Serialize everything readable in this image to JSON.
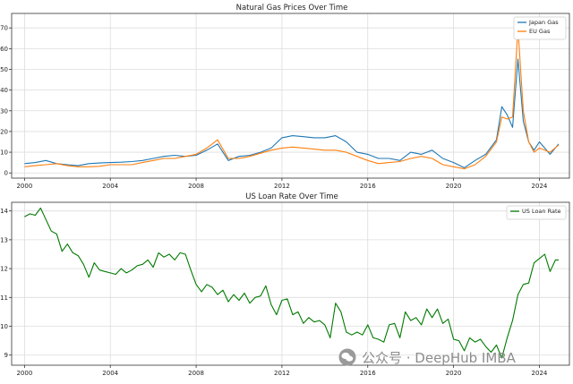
{
  "chart_data": [
    {
      "type": "line",
      "title": "Natural Gas Prices Over Time",
      "xlim": [
        1999.4,
        2025.4
      ],
      "ylim": [
        -2.5,
        77
      ],
      "xticks": [
        2000,
        2004,
        2008,
        2012,
        2016,
        2020,
        2024
      ],
      "yticks": [
        0,
        10,
        20,
        30,
        40,
        50,
        60,
        70
      ],
      "grid": true,
      "legend_position": "top-right",
      "series": [
        {
          "name": "Japan Gas",
          "color": "#1f77b4",
          "x": [
            2000,
            2000.5,
            2001,
            2001.5,
            2002,
            2002.5,
            2003,
            2003.5,
            2004,
            2004.5,
            2005,
            2005.5,
            2006,
            2006.5,
            2007,
            2007.5,
            2008,
            2008.5,
            2009,
            2009.5,
            2010,
            2010.5,
            2011,
            2011.5,
            2012,
            2012.5,
            2013,
            2013.5,
            2014,
            2014.5,
            2015,
            2015.5,
            2016,
            2016.5,
            2017,
            2017.5,
            2018,
            2018.5,
            2019,
            2019.5,
            2020,
            2020.5,
            2021,
            2021.5,
            2022,
            2022.25,
            2022.5,
            2022.75,
            2023,
            2023.25,
            2023.5,
            2023.75,
            2024,
            2024.5,
            2024.9
          ],
          "y": [
            4.5,
            5,
            6,
            4.5,
            4,
            3.5,
            4.5,
            4.8,
            5,
            5.2,
            5.5,
            6,
            7,
            8,
            8.5,
            8,
            8.5,
            11,
            14,
            6,
            8,
            8.5,
            10,
            12,
            17,
            18,
            17.5,
            17,
            17,
            18,
            15,
            10,
            9,
            7,
            7,
            6,
            10,
            9,
            11,
            7,
            5,
            2.5,
            6,
            9,
            16,
            32,
            28,
            22,
            55,
            25,
            15,
            11,
            15,
            9,
            14
          ]
        },
        {
          "name": "EU Gas",
          "color": "#ff7f0e",
          "x": [
            2000,
            2000.5,
            2001,
            2001.5,
            2002,
            2002.5,
            2003,
            2003.5,
            2004,
            2004.5,
            2005,
            2005.5,
            2006,
            2006.5,
            2007,
            2007.5,
            2008,
            2008.5,
            2009,
            2009.5,
            2010,
            2010.5,
            2011,
            2011.5,
            2012,
            2012.5,
            2013,
            2013.5,
            2014,
            2014.5,
            2015,
            2015.5,
            2016,
            2016.5,
            2017,
            2017.5,
            2018,
            2018.5,
            2019,
            2019.5,
            2020,
            2020.5,
            2021,
            2021.5,
            2022,
            2022.25,
            2022.5,
            2022.75,
            2023,
            2023.25,
            2023.5,
            2023.75,
            2024,
            2024.5,
            2024.9
          ],
          "y": [
            3,
            3.5,
            4,
            4.5,
            3.5,
            3,
            3,
            3.2,
            4,
            4,
            4,
            5,
            6,
            7,
            7,
            8,
            9,
            12,
            16,
            7,
            7,
            8,
            9.5,
            11,
            12,
            12.5,
            12,
            11.5,
            11,
            11,
            10,
            8,
            6,
            4.5,
            5,
            5.5,
            7,
            8,
            7,
            4,
            3,
            2,
            4,
            8,
            15,
            27,
            26,
            27,
            70,
            30,
            15,
            10,
            12,
            10,
            13.5
          ]
        }
      ]
    },
    {
      "type": "line",
      "title": "US Loan Rate Over Time",
      "xlim": [
        1999.4,
        2025.4
      ],
      "ylim": [
        8.65,
        14.3
      ],
      "xticks": [
        2000,
        2004,
        2008,
        2012,
        2016,
        2020,
        2024
      ],
      "yticks": [
        9,
        10,
        11,
        12,
        13,
        14
      ],
      "grid": true,
      "legend_position": "top-right",
      "series": [
        {
          "name": "US Loan Rate",
          "color": "#007a00",
          "x": [
            2000,
            2000.25,
            2000.5,
            2000.75,
            2001,
            2001.25,
            2001.5,
            2001.75,
            2002,
            2002.25,
            2002.5,
            2002.75,
            2003,
            2003.25,
            2003.5,
            2003.75,
            2004,
            2004.25,
            2004.5,
            2004.75,
            2005,
            2005.25,
            2005.5,
            2005.75,
            2006,
            2006.25,
            2006.5,
            2006.75,
            2007,
            2007.25,
            2007.5,
            2007.75,
            2008,
            2008.25,
            2008.5,
            2008.75,
            2009,
            2009.25,
            2009.5,
            2009.75,
            2010,
            2010.25,
            2010.5,
            2010.75,
            2011,
            2011.25,
            2011.5,
            2011.75,
            2012,
            2012.25,
            2012.5,
            2012.75,
            2013,
            2013.25,
            2013.5,
            2013.75,
            2014,
            2014.25,
            2014.5,
            2014.75,
            2015,
            2015.25,
            2015.5,
            2015.75,
            2016,
            2016.25,
            2016.5,
            2016.75,
            2017,
            2017.25,
            2017.5,
            2017.75,
            2018,
            2018.25,
            2018.5,
            2018.75,
            2019,
            2019.25,
            2019.5,
            2019.75,
            2020,
            2020.25,
            2020.5,
            2020.75,
            2021,
            2021.25,
            2021.5,
            2021.75,
            2022,
            2022.25,
            2022.5,
            2022.75,
            2023,
            2023.25,
            2023.5,
            2023.75,
            2024,
            2024.25,
            2024.5,
            2024.75,
            2024.9
          ],
          "y": [
            13.8,
            13.9,
            13.85,
            14.1,
            13.7,
            13.3,
            13.2,
            12.6,
            12.85,
            12.55,
            12.45,
            12.15,
            11.7,
            12.2,
            11.95,
            11.9,
            11.85,
            11.8,
            12.0,
            11.85,
            11.95,
            12.1,
            12.15,
            12.3,
            12.05,
            12.55,
            12.4,
            12.5,
            12.3,
            12.55,
            12.5,
            11.95,
            11.45,
            11.2,
            11.45,
            11.35,
            11.1,
            11.25,
            10.85,
            11.1,
            10.9,
            11.15,
            10.8,
            11.0,
            11.05,
            11.4,
            10.75,
            10.4,
            10.9,
            10.95,
            10.4,
            10.5,
            10.1,
            10.3,
            10.15,
            10.2,
            10.05,
            9.6,
            10.8,
            10.5,
            9.8,
            9.7,
            9.8,
            9.7,
            10.05,
            9.6,
            9.55,
            9.45,
            10.05,
            10.1,
            9.6,
            10.5,
            10.2,
            10.3,
            10.05,
            10.6,
            10.3,
            10.6,
            10.1,
            10.25,
            9.55,
            9.5,
            9.15,
            9.6,
            9.45,
            9.55,
            9.3,
            9.1,
            9.35,
            8.9,
            9.6,
            10.2,
            11.1,
            11.45,
            11.5,
            12.2,
            12.35,
            12.5,
            11.9,
            12.3,
            12.3
          ]
        }
      ]
    }
  ],
  "watermark": {
    "text": "公众号 · DeepHub IMBA",
    "icon": "wechat-logo-icon"
  }
}
